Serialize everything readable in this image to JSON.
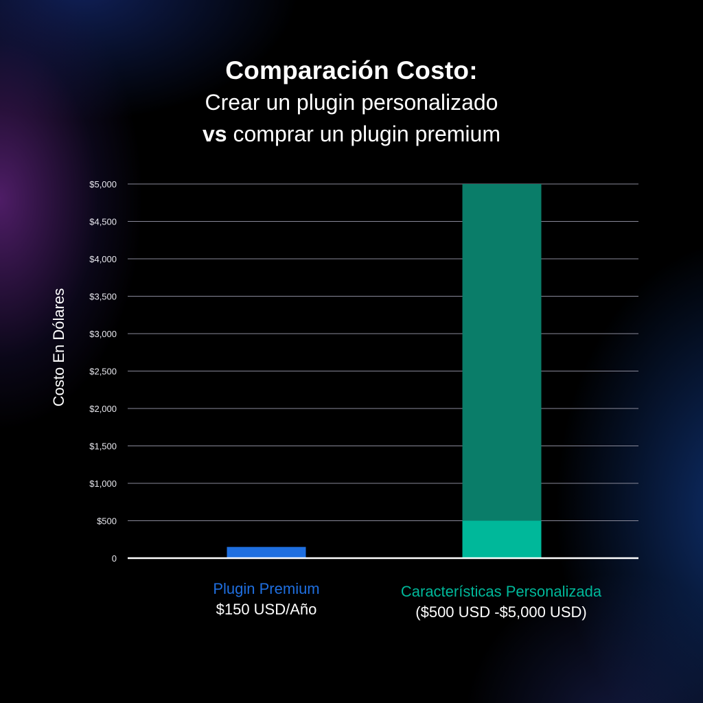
{
  "title_line1": "Comparación Costo:",
  "title_line2": "Crear un plugin personalizado",
  "title_line3_bold": "vs",
  "title_line3_rest": " comprar un plugin premium",
  "colors": {
    "background": "#000000",
    "premium": "#1f6fe0",
    "custom_range": "#0a7d69",
    "custom_base": "#00b89a",
    "grid": "#8a8a9a"
  },
  "chart_data": {
    "type": "bar",
    "title": "Comparación Costo:",
    "subtitle": "Crear un plugin personalizado vs comprar un plugin premium",
    "ylabel": "Costo En Dólares",
    "ylim": [
      0,
      5000
    ],
    "yticks": [
      0,
      500,
      1000,
      1500,
      2000,
      2500,
      3000,
      3500,
      4000,
      4500,
      5000
    ],
    "ytick_labels": [
      "0",
      "$500",
      "$1,000",
      "$1,500",
      "$2,000",
      "$2,500",
      "$3,000",
      "$3,500",
      "$4,000",
      "$4,500",
      "$5,000"
    ],
    "grid": true,
    "categories": [
      {
        "name": "Plugin Premium",
        "value_label": "$150 USD/Año",
        "low": 0,
        "high": 150,
        "color": "#1f6fe0"
      },
      {
        "name": "Características Personalizada",
        "value_label": "($500 USD -$5,000 USD)",
        "low": 500,
        "high": 5000,
        "base": 500,
        "color": "#00b89a",
        "range_color": "#0a7d69"
      }
    ]
  }
}
